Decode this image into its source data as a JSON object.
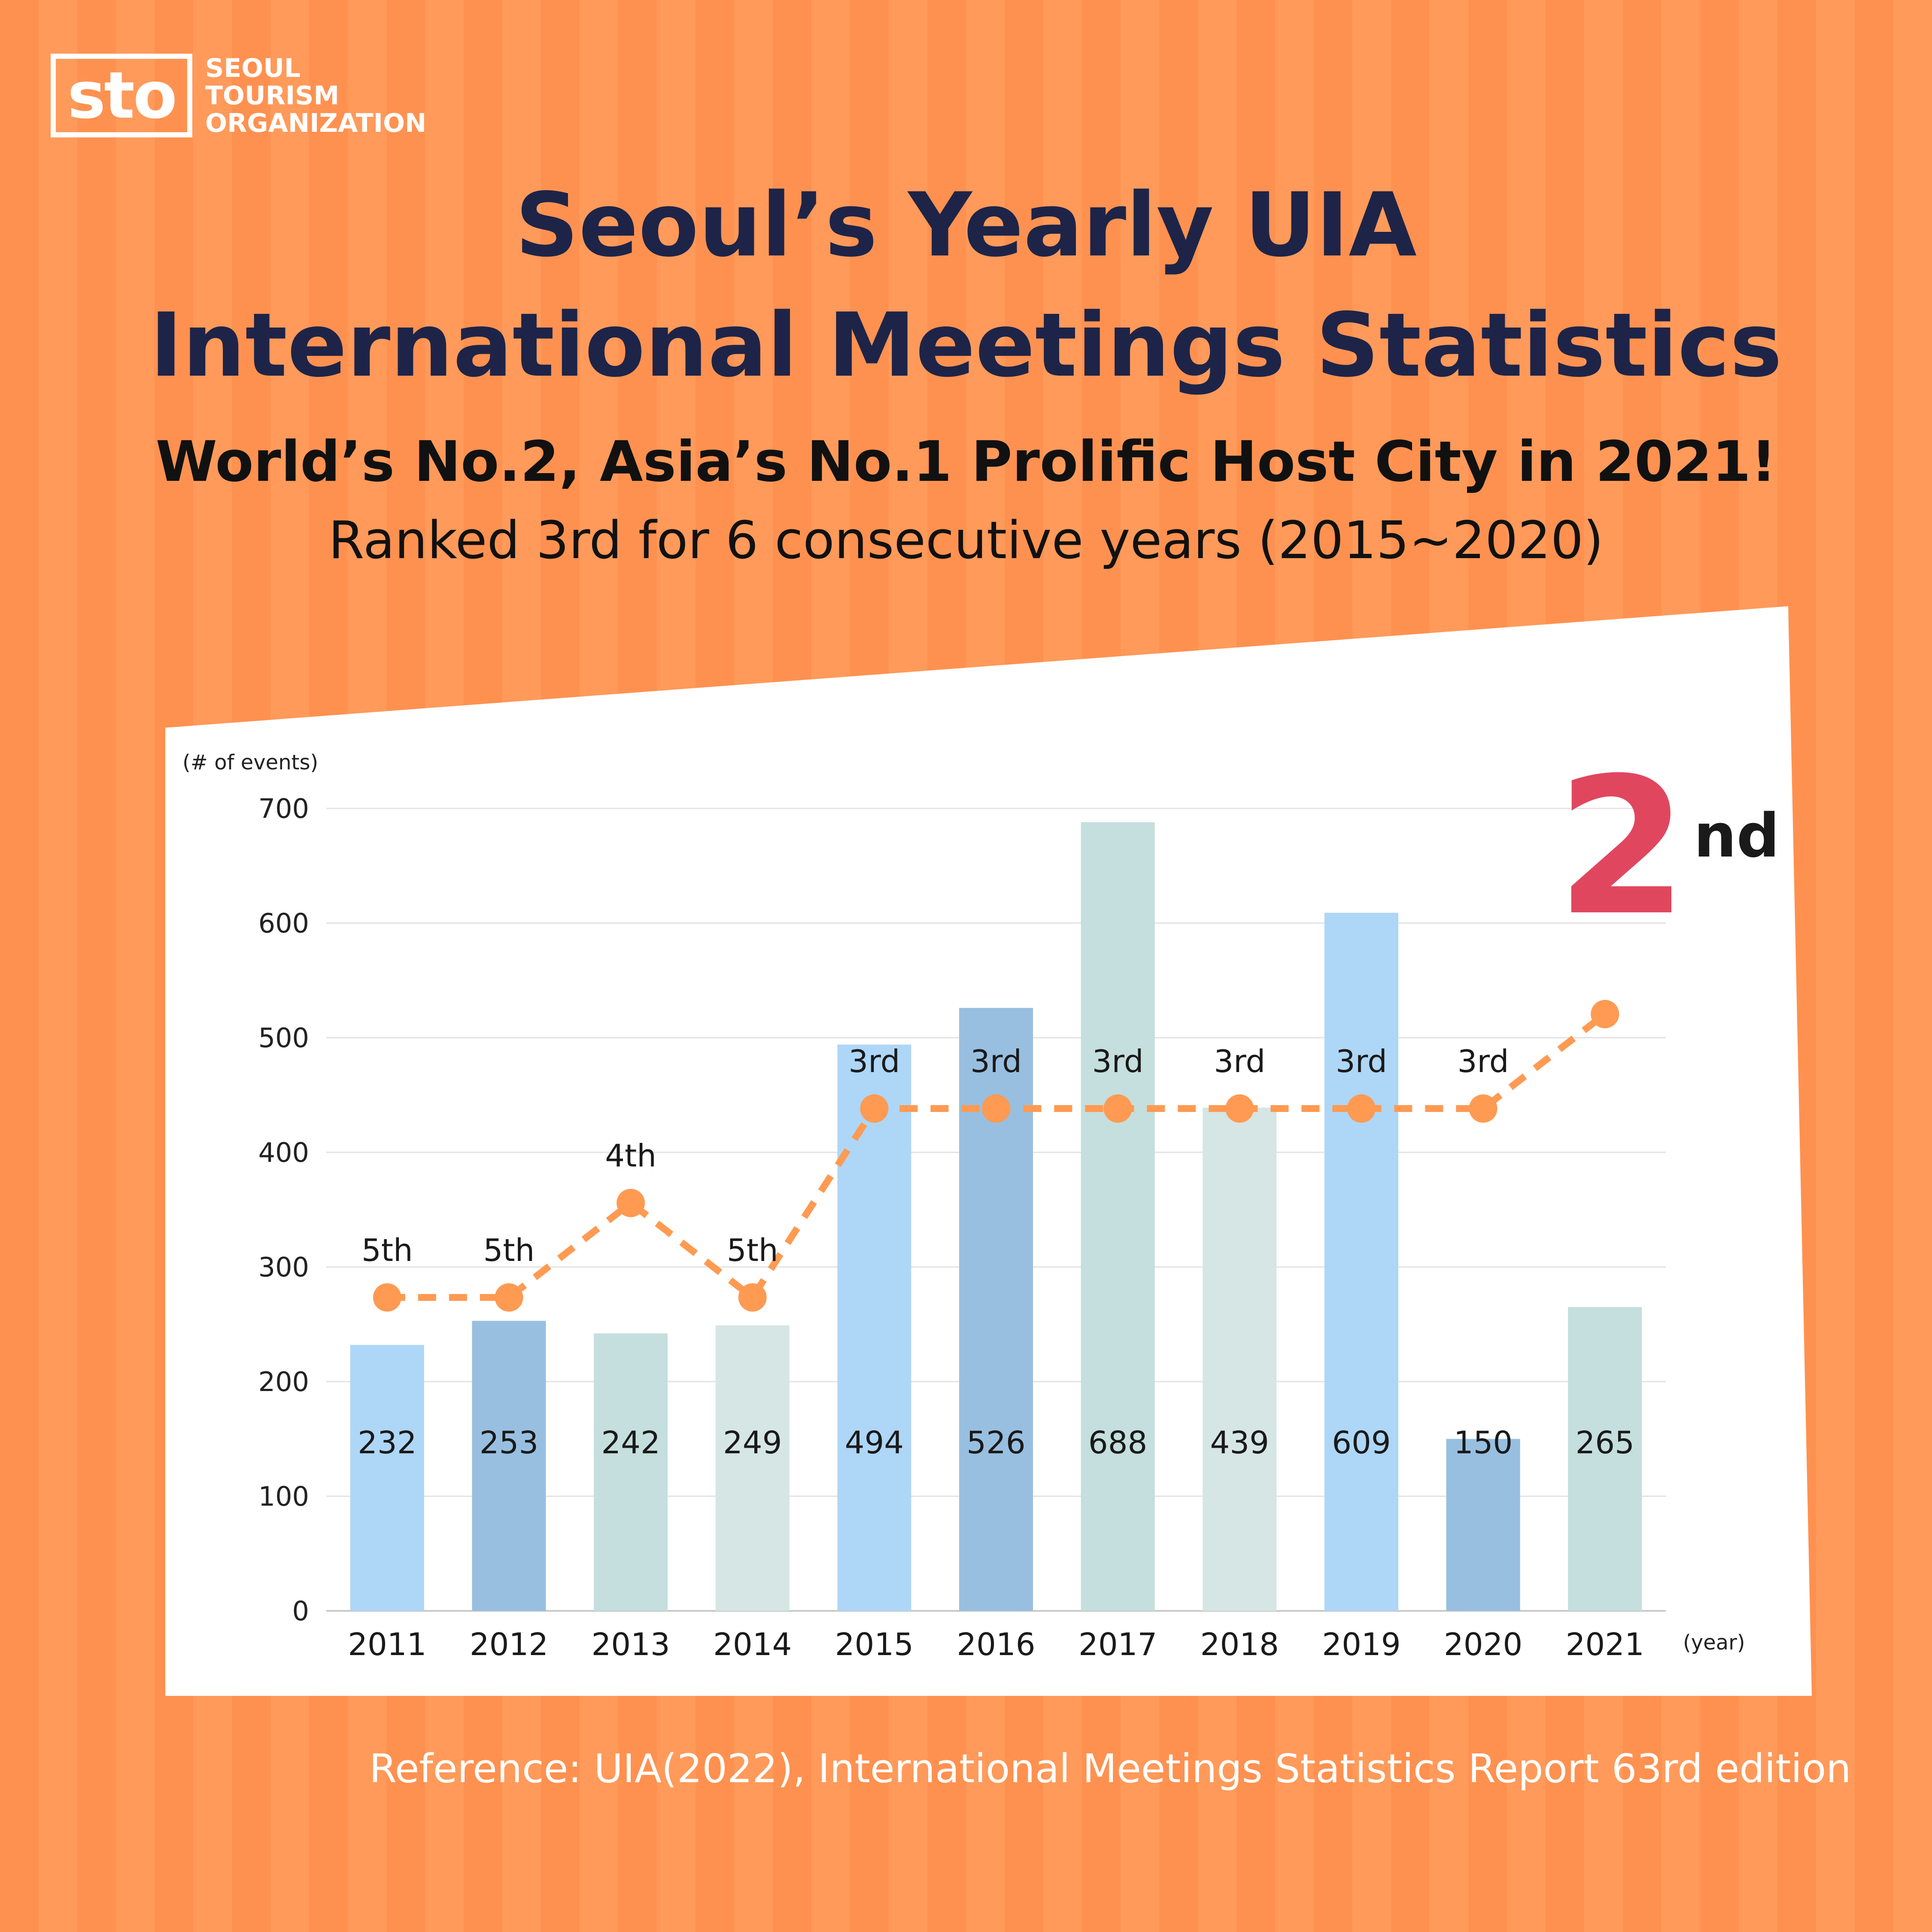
{
  "logo": {
    "mark": "sto",
    "line1": "SEOUL",
    "line2": "TOURISM",
    "line3": "ORGANIZATION"
  },
  "header": {
    "title_line1": "Seoul’s Yearly UIA",
    "title_line2": "International Meetings Statistics",
    "subtitle": "World’s No.2, Asia’s No.1 Prolific Host City in 2021!",
    "subtitle2": "Ranked 3rd for 6 consecutive years (2015~2020)"
  },
  "badge": {
    "number": "2",
    "suffix": "nd"
  },
  "reference": "Reference: UIA(2022), International Meetings Statistics Report 63rd edition",
  "colors": {
    "background": "#ff9150",
    "title": "#1e2448",
    "rank_line": "#ff9a52",
    "badge": "#e0475e",
    "bar_palette": [
      "#aed6f7",
      "#98bfe0",
      "#c4dfdd",
      "#d5e6e4"
    ]
  },
  "chart_data": {
    "type": "bar",
    "ylabel": "(# of events)",
    "xlabel": "(year)",
    "ylim": [
      0,
      700
    ],
    "yticks": [
      0,
      100,
      200,
      300,
      400,
      500,
      600,
      700
    ],
    "grid": true,
    "categories": [
      "2011",
      "2012",
      "2013",
      "2014",
      "2015",
      "2016",
      "2017",
      "2018",
      "2019",
      "2020",
      "2021"
    ],
    "values": [
      232,
      253,
      242,
      249,
      494,
      526,
      688,
      439,
      609,
      150,
      265
    ],
    "value_labels": [
      "232",
      "253",
      "242",
      "249",
      "494",
      "526",
      "688",
      "439",
      "609",
      "150",
      "265"
    ],
    "bar_colors": [
      "#aed6f7",
      "#98bfe0",
      "#c4dfdd",
      "#d5e6e4",
      "#aed6f7",
      "#98bfe0",
      "#c4dfdd",
      "#d5e6e4",
      "#aed6f7",
      "#98bfe0",
      "#c4dfdd"
    ],
    "rank_series": {
      "ranks": [
        5,
        5,
        4,
        5,
        3,
        3,
        3,
        3,
        3,
        3,
        2
      ],
      "labels": [
        "5th",
        "5th",
        "4th",
        "5th",
        "3rd",
        "3rd",
        "3rd",
        "3rd",
        "3rd",
        "3rd",
        ""
      ],
      "style": "dashed"
    }
  }
}
